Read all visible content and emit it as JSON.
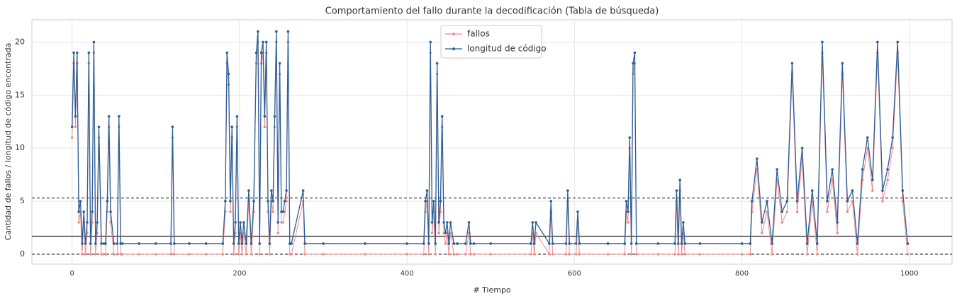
{
  "chart_data": {
    "type": "line",
    "title": "Comportamiento del fallo durante la decodificación (Tabla de búsqueda)",
    "xlabel": "# Tiempo",
    "ylabel": "Cantidad de fallos / longitud de código encontrada",
    "x": [
      0,
      2,
      4,
      6,
      8,
      10,
      12,
      14,
      16,
      18,
      20,
      22,
      24,
      26,
      28,
      30,
      32,
      35,
      38,
      40,
      42,
      44,
      46,
      50,
      54,
      56,
      58,
      60,
      80,
      100,
      118,
      120,
      122,
      140,
      160,
      180,
      183,
      185,
      187,
      189,
      191,
      193,
      195,
      197,
      199,
      201,
      203,
      205,
      208,
      211,
      214,
      217,
      220,
      222,
      224,
      226,
      228,
      230,
      232,
      234,
      236,
      238,
      240,
      242,
      244,
      246,
      248,
      250,
      252,
      254,
      256,
      258,
      260,
      262,
      276,
      278,
      300,
      350,
      400,
      420,
      422,
      424,
      426,
      428,
      430,
      432,
      434,
      436,
      438,
      440,
      442,
      444,
      446,
      448,
      450,
      452,
      456,
      460,
      470,
      474,
      476,
      480,
      500,
      548,
      550,
      552,
      554,
      570,
      572,
      574,
      590,
      592,
      594,
      602,
      604,
      606,
      640,
      660,
      662,
      664,
      666,
      668,
      670,
      672,
      674,
      700,
      720,
      722,
      724,
      726,
      728,
      730,
      732,
      750,
      800,
      810,
      812,
      818,
      824,
      830,
      836,
      842,
      848,
      854,
      860,
      866,
      872,
      878,
      884,
      890,
      896,
      902,
      908,
      914,
      920,
      926,
      932,
      938,
      944,
      950,
      956,
      962,
      968,
      974,
      980,
      986,
      992,
      998
    ],
    "series": [
      {
        "name": "fallos",
        "color": "#f08c8c",
        "values": [
          11,
          18,
          12,
          18,
          3,
          4,
          0,
          3,
          0,
          2,
          18,
          0,
          3,
          19,
          0,
          2,
          11,
          0,
          0,
          0,
          4,
          12,
          3,
          0,
          0,
          12,
          0,
          0,
          0,
          0,
          0,
          11,
          0,
          0,
          0,
          0,
          4,
          18,
          16,
          4,
          11,
          0,
          2,
          12,
          0,
          2,
          0,
          2,
          0,
          5,
          0,
          4,
          18,
          20,
          0,
          18,
          19,
          12,
          19,
          4,
          0,
          5,
          4,
          12,
          20,
          2,
          17,
          3,
          3,
          4,
          5,
          20,
          0,
          0,
          5,
          0,
          0,
          0,
          0,
          0,
          4,
          5,
          0,
          19,
          2,
          4,
          0,
          17,
          2,
          4,
          12,
          2,
          1,
          2,
          0,
          2,
          0,
          0,
          0,
          2,
          0,
          0,
          0,
          0,
          2,
          0,
          2,
          0,
          4,
          0,
          0,
          5,
          0,
          0,
          3,
          0,
          0,
          0,
          4,
          3,
          10,
          0,
          17,
          18,
          0,
          0,
          0,
          5,
          0,
          6,
          0,
          2,
          0,
          0,
          0,
          0,
          4,
          8,
          2,
          4,
          0,
          7,
          3,
          4,
          17,
          4,
          9,
          0,
          5,
          0,
          19,
          4,
          7,
          2,
          17,
          4,
          5,
          0,
          7,
          10,
          6,
          19,
          5,
          7,
          10,
          19,
          5,
          0
        ]
      },
      {
        "name": "longitud de código",
        "color": "#2a5f96",
        "values": [
          12,
          19,
          13,
          19,
          4,
          5,
          1,
          4,
          1,
          3,
          19,
          1,
          4,
          20,
          1,
          3,
          12,
          1,
          1,
          1,
          5,
          13,
          4,
          1,
          1,
          13,
          1,
          1,
          1,
          1,
          1,
          12,
          1,
          1,
          1,
          1,
          5,
          19,
          17,
          5,
          12,
          1,
          3,
          13,
          1,
          3,
          1,
          3,
          1,
          6,
          1,
          5,
          19,
          21,
          1,
          19,
          20,
          13,
          20,
          5,
          1,
          6,
          5,
          13,
          21,
          3,
          18,
          4,
          4,
          5,
          6,
          21,
          1,
          1,
          6,
          1,
          1,
          1,
          1,
          1,
          5,
          6,
          1,
          20,
          3,
          5,
          1,
          18,
          3,
          5,
          13,
          3,
          2,
          3,
          1,
          3,
          1,
          1,
          1,
          3,
          1,
          1,
          1,
          1,
          3,
          1,
          3,
          1,
          5,
          1,
          1,
          6,
          1,
          1,
          4,
          1,
          1,
          1,
          5,
          4,
          11,
          1,
          18,
          19,
          1,
          1,
          1,
          6,
          1,
          7,
          1,
          3,
          1,
          1,
          1,
          1,
          5,
          9,
          3,
          5,
          1,
          8,
          4,
          5,
          18,
          5,
          10,
          1,
          6,
          1,
          20,
          5,
          8,
          3,
          18,
          5,
          6,
          1,
          8,
          11,
          7,
          20,
          6,
          8,
          11,
          20,
          6,
          1
        ]
      }
    ],
    "hlines": [
      {
        "value": 1.7,
        "style": "solid"
      },
      {
        "value": 5.3,
        "style": "dashed"
      },
      {
        "value": 0,
        "style": "dashed"
      }
    ],
    "xlim": [
      -48,
      1051
    ],
    "ylim": [
      -0.94,
      22.1
    ],
    "xticks": [
      0,
      200,
      400,
      600,
      800,
      1000
    ],
    "yticks": [
      0,
      5,
      10,
      15,
      20
    ],
    "grid": true,
    "legend": "upper center"
  }
}
